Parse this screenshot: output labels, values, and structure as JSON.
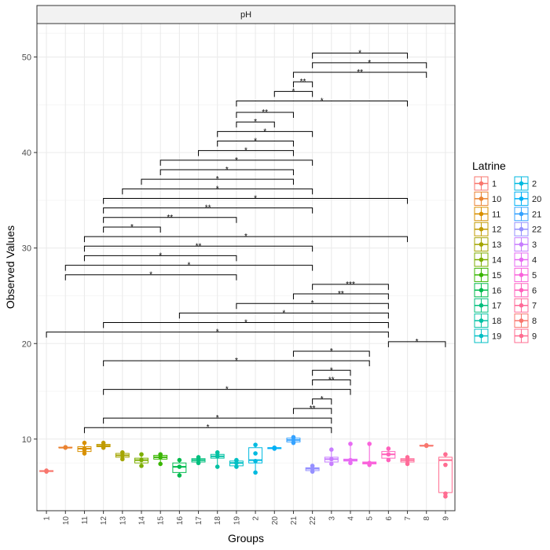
{
  "chart_data": {
    "type": "box",
    "facet_label": "pH",
    "xlabel": "Groups",
    "ylabel": "Observed Values",
    "ylim": [
      2.5,
      53.5
    ],
    "y_ticks": [
      10,
      20,
      30,
      40,
      50
    ],
    "grid": true,
    "legend_title": "Latrine",
    "legend_position": "right",
    "categories": [
      "1",
      "10",
      "11",
      "12",
      "13",
      "14",
      "15",
      "16",
      "17",
      "18",
      "19",
      "2",
      "20",
      "21",
      "22",
      "3",
      "4",
      "5",
      "6",
      "7",
      "8",
      "9"
    ],
    "colors": [
      "#F8766D",
      "#EA8331",
      "#D89000",
      "#C09B00",
      "#A3A500",
      "#7CAE00",
      "#39B600",
      "#00BB4E",
      "#00BF7D",
      "#00C1A3",
      "#00BFC4",
      "#00BAE0",
      "#00B0F6",
      "#35A2FF",
      "#9590FF",
      "#C77CFF",
      "#E76BF3",
      "#FA62DB",
      "#FF62BC",
      "#FF6A98",
      "#F8766D",
      "#FF6C91"
    ],
    "legend_col1": [
      "1",
      "10",
      "11",
      "12",
      "13",
      "14",
      "15",
      "16",
      "17",
      "18",
      "19"
    ],
    "legend_col2": [
      "2",
      "20",
      "21",
      "22",
      "3",
      "4",
      "5",
      "6",
      "7",
      "8",
      "9"
    ],
    "boxes": [
      {
        "group": "1",
        "min": 6.6,
        "q1": 6.6,
        "median": 6.65,
        "q3": 6.7,
        "max": 6.7,
        "points": [
          6.6,
          6.7
        ]
      },
      {
        "group": "10",
        "min": 9.1,
        "q1": 9.1,
        "median": 9.1,
        "q3": 9.15,
        "max": 9.2,
        "points": [
          9.1,
          9.15
        ]
      },
      {
        "group": "11",
        "min": 8.5,
        "q1": 8.7,
        "median": 9.0,
        "q3": 9.2,
        "max": 9.6,
        "points": [
          8.5,
          8.9,
          9.0,
          9.6
        ]
      },
      {
        "group": "12",
        "min": 9.1,
        "q1": 9.2,
        "median": 9.3,
        "q3": 9.45,
        "max": 9.6,
        "points": [
          9.1,
          9.3,
          9.6
        ]
      },
      {
        "group": "13",
        "min": 7.9,
        "q1": 8.1,
        "median": 8.3,
        "q3": 8.5,
        "max": 8.6,
        "points": [
          7.9,
          8.3,
          8.6
        ]
      },
      {
        "group": "14",
        "min": 7.2,
        "q1": 7.5,
        "median": 7.8,
        "q3": 8.0,
        "max": 8.4,
        "points": [
          7.2,
          7.8,
          8.4
        ]
      },
      {
        "group": "15",
        "min": 7.4,
        "q1": 7.9,
        "median": 8.1,
        "q3": 8.3,
        "max": 8.4,
        "points": [
          7.4,
          8.1,
          8.4
        ]
      },
      {
        "group": "16",
        "min": 6.2,
        "q1": 6.5,
        "median": 7.1,
        "q3": 7.5,
        "max": 7.8,
        "points": [
          6.2,
          7.1,
          7.8
        ]
      },
      {
        "group": "17",
        "min": 7.5,
        "q1": 7.6,
        "median": 7.8,
        "q3": 7.95,
        "max": 8.1,
        "points": [
          7.5,
          7.8,
          8.1
        ]
      },
      {
        "group": "18",
        "min": 7.1,
        "q1": 8.0,
        "median": 8.2,
        "q3": 8.4,
        "max": 8.6,
        "points": [
          7.1,
          8.2,
          8.6
        ]
      },
      {
        "group": "19",
        "min": 7.1,
        "q1": 7.2,
        "median": 7.5,
        "q3": 7.7,
        "max": 7.8,
        "points": [
          7.1,
          7.5,
          7.8
        ]
      },
      {
        "group": "2",
        "min": 6.5,
        "q1": 7.5,
        "median": 7.8,
        "q3": 9.1,
        "max": 9.4,
        "points": [
          6.5,
          7.7,
          8.5,
          9.4
        ]
      },
      {
        "group": "20",
        "min": 9.0,
        "q1": 9.0,
        "median": 9.05,
        "q3": 9.1,
        "max": 9.1,
        "points": [
          9.0,
          9.1
        ]
      },
      {
        "group": "21",
        "min": 9.6,
        "q1": 9.7,
        "median": 9.9,
        "q3": 10.1,
        "max": 10.2,
        "points": [
          9.6,
          9.9,
          10.2
        ]
      },
      {
        "group": "22",
        "min": 6.6,
        "q1": 6.7,
        "median": 6.9,
        "q3": 7.0,
        "max": 7.2,
        "points": [
          6.6,
          6.9,
          7.2
        ]
      },
      {
        "group": "3",
        "min": 7.4,
        "q1": 7.6,
        "median": 7.9,
        "q3": 8.1,
        "max": 8.9,
        "points": [
          7.4,
          7.9,
          8.9
        ]
      },
      {
        "group": "4",
        "min": 7.5,
        "q1": 7.7,
        "median": 7.8,
        "q3": 7.9,
        "max": 9.5,
        "points": [
          7.5,
          7.8,
          9.5
        ]
      },
      {
        "group": "5",
        "min": 7.3,
        "q1": 7.4,
        "median": 7.5,
        "q3": 7.6,
        "max": 9.5,
        "points": [
          7.3,
          7.5,
          9.5
        ]
      },
      {
        "group": "6",
        "min": 7.8,
        "q1": 8.0,
        "median": 8.4,
        "q3": 8.7,
        "max": 9.0,
        "points": [
          7.8,
          8.4,
          9.0
        ]
      },
      {
        "group": "7",
        "min": 7.4,
        "q1": 7.6,
        "median": 7.8,
        "q3": 7.95,
        "max": 8.1,
        "points": [
          7.4,
          7.8,
          8.1
        ]
      },
      {
        "group": "8",
        "min": 9.3,
        "q1": 9.3,
        "median": 9.3,
        "q3": 9.35,
        "max": 9.4,
        "points": [
          9.3,
          9.35
        ]
      },
      {
        "group": "9",
        "min": 4.0,
        "q1": 4.4,
        "median": 7.8,
        "q3": 8.1,
        "max": 8.4,
        "points": [
          4.0,
          4.3,
          7.3,
          8.4
        ]
      }
    ],
    "comparisons": [
      {
        "from": "11",
        "to": "3",
        "y": 11.2,
        "label": "*"
      },
      {
        "from": "12",
        "to": "3",
        "y": 12.2,
        "label": "*"
      },
      {
        "from": "21",
        "to": "3",
        "y": 13.2,
        "label": "**"
      },
      {
        "from": "22",
        "to": "3",
        "y": 14.2,
        "label": "*"
      },
      {
        "from": "12",
        "to": "4",
        "y": 15.2,
        "label": "*"
      },
      {
        "from": "22",
        "to": "4",
        "y": 16.2,
        "label": "**"
      },
      {
        "from": "22",
        "to": "4",
        "y": 17.2,
        "label": "*"
      },
      {
        "from": "12",
        "to": "5",
        "y": 18.2,
        "label": "*"
      },
      {
        "from": "21",
        "to": "5",
        "y": 19.2,
        "label": "*"
      },
      {
        "from": "6",
        "to": "9",
        "y": 20.2,
        "label": "*"
      },
      {
        "from": "1",
        "to": "6",
        "y": 21.2,
        "label": "*"
      },
      {
        "from": "12",
        "to": "6",
        "y": 22.2,
        "label": "*"
      },
      {
        "from": "16",
        "to": "6",
        "y": 23.2,
        "label": "*"
      },
      {
        "from": "19",
        "to": "6",
        "y": 24.2,
        "label": "*"
      },
      {
        "from": "21",
        "to": "6",
        "y": 25.2,
        "label": "**"
      },
      {
        "from": "22",
        "to": "6",
        "y": 26.2,
        "label": "***"
      },
      {
        "from": "10",
        "to": "19",
        "y": 27.2,
        "label": "*"
      },
      {
        "from": "10",
        "to": "22",
        "y": 28.2,
        "label": "*"
      },
      {
        "from": "11",
        "to": "19",
        "y": 29.2,
        "label": "*"
      },
      {
        "from": "11",
        "to": "22",
        "y": 30.2,
        "label": "**"
      },
      {
        "from": "11",
        "to": "7",
        "y": 31.2,
        "label": "*"
      },
      {
        "from": "12",
        "to": "15",
        "y": 32.2,
        "label": "*"
      },
      {
        "from": "12",
        "to": "19",
        "y": 33.2,
        "label": "**"
      },
      {
        "from": "12",
        "to": "22",
        "y": 34.2,
        "label": "**"
      },
      {
        "from": "12",
        "to": "7",
        "y": 35.2,
        "label": "*"
      },
      {
        "from": "13",
        "to": "22",
        "y": 36.2,
        "label": "*"
      },
      {
        "from": "14",
        "to": "21",
        "y": 37.2,
        "label": "*"
      },
      {
        "from": "15",
        "to": "21",
        "y": 38.2,
        "label": "*"
      },
      {
        "from": "15",
        "to": "22",
        "y": 39.2,
        "label": "*"
      },
      {
        "from": "17",
        "to": "21",
        "y": 40.2,
        "label": "*"
      },
      {
        "from": "18",
        "to": "21",
        "y": 41.2,
        "label": "*"
      },
      {
        "from": "18",
        "to": "22",
        "y": 42.2,
        "label": "*"
      },
      {
        "from": "19",
        "to": "20",
        "y": 43.2,
        "label": "*"
      },
      {
        "from": "19",
        "to": "21",
        "y": 44.2,
        "label": "**"
      },
      {
        "from": "19",
        "to": "7",
        "y": 45.4,
        "label": "*"
      },
      {
        "from": "20",
        "to": "22",
        "y": 46.4,
        "label": "*"
      },
      {
        "from": "21",
        "to": "22",
        "y": 47.4,
        "label": "**"
      },
      {
        "from": "21",
        "to": "8",
        "y": 48.4,
        "label": "**"
      },
      {
        "from": "22",
        "to": "8",
        "y": 49.4,
        "label": "*"
      },
      {
        "from": "22",
        "to": "7",
        "y": 50.4,
        "label": "*"
      }
    ]
  }
}
